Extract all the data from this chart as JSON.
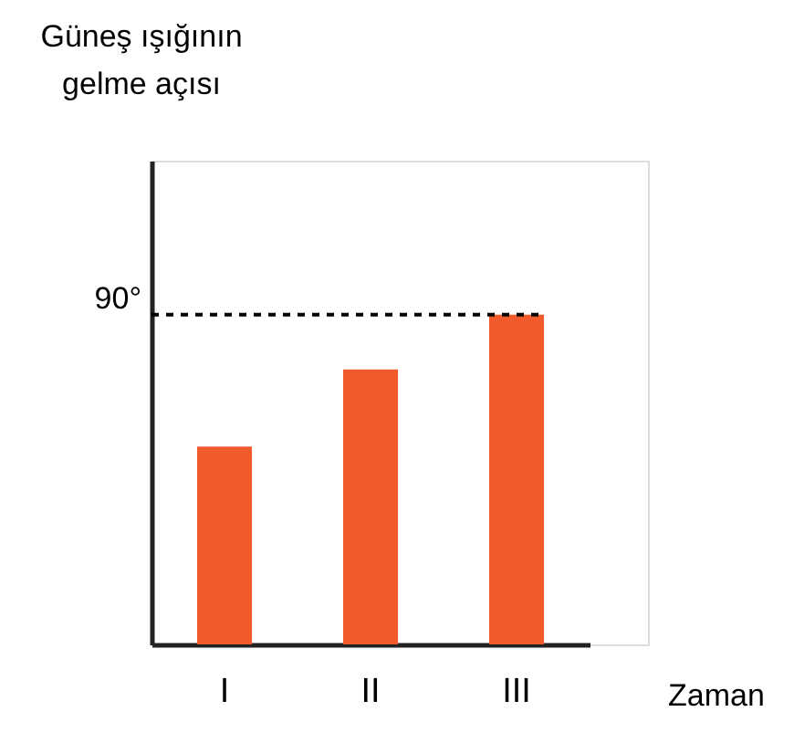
{
  "chart_data": {
    "type": "bar",
    "ylabel": "Güneş ışığının\ngelme açısı",
    "xlabel": "Zaman",
    "categories": [
      "I",
      "II",
      "III"
    ],
    "values": [
      54,
      75,
      90
    ],
    "color": "#f15a2b",
    "ylim": [
      0,
      132
    ],
    "yticks": [
      {
        "value": 90,
        "label": "90°"
      }
    ],
    "ref_lines": [
      {
        "axis": "y",
        "value": 90,
        "line_style": "dashed",
        "color": "#000000"
      }
    ],
    "grid": false
  }
}
